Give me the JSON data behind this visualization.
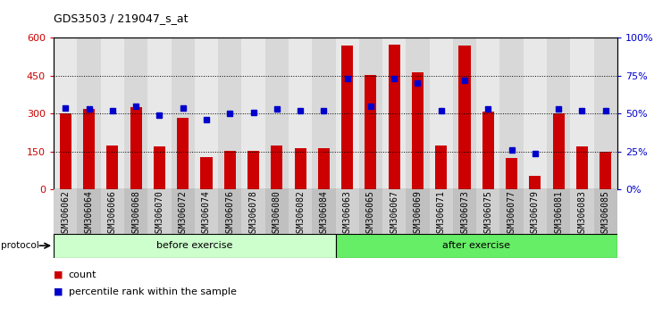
{
  "title": "GDS3503 / 219047_s_at",
  "categories": [
    "GSM306062",
    "GSM306064",
    "GSM306066",
    "GSM306068",
    "GSM306070",
    "GSM306072",
    "GSM306074",
    "GSM306076",
    "GSM306078",
    "GSM306080",
    "GSM306082",
    "GSM306084",
    "GSM306063",
    "GSM306065",
    "GSM306067",
    "GSM306069",
    "GSM306071",
    "GSM306073",
    "GSM306075",
    "GSM306077",
    "GSM306079",
    "GSM306081",
    "GSM306083",
    "GSM306085"
  ],
  "bar_values": [
    300,
    320,
    175,
    325,
    170,
    285,
    130,
    155,
    155,
    175,
    165,
    165,
    570,
    455,
    575,
    465,
    175,
    570,
    310,
    125,
    55,
    300,
    170,
    150
  ],
  "marker_values": [
    54,
    53,
    52,
    55,
    49,
    54,
    46,
    50,
    51,
    53,
    52,
    52,
    73,
    55,
    73,
    70,
    52,
    72,
    53,
    26,
    24,
    53,
    52,
    52
  ],
  "group1_label": "before exercise",
  "group2_label": "after exercise",
  "group1_count": 12,
  "group2_count": 12,
  "bar_color": "#CC0000",
  "marker_color": "#0000CC",
  "ylim_left": [
    0,
    600
  ],
  "ylim_right": [
    0,
    100
  ],
  "yticks_left": [
    0,
    150,
    300,
    450,
    600
  ],
  "yticks_right": [
    0,
    25,
    50,
    75,
    100
  ],
  "ytick_labels_left": [
    "0",
    "150",
    "300",
    "450",
    "600"
  ],
  "ytick_labels_right": [
    "0%",
    "25%",
    "50%",
    "75%",
    "100%"
  ],
  "group1_color": "#ccffcc",
  "group2_color": "#66ee66",
  "protocol_label": "protocol",
  "legend_count": "count",
  "legend_percentile": "percentile rank within the sample",
  "col_bg_odd": "#d8d8d8",
  "col_bg_even": "#e8e8e8",
  "plot_bg_color": "#ffffff"
}
